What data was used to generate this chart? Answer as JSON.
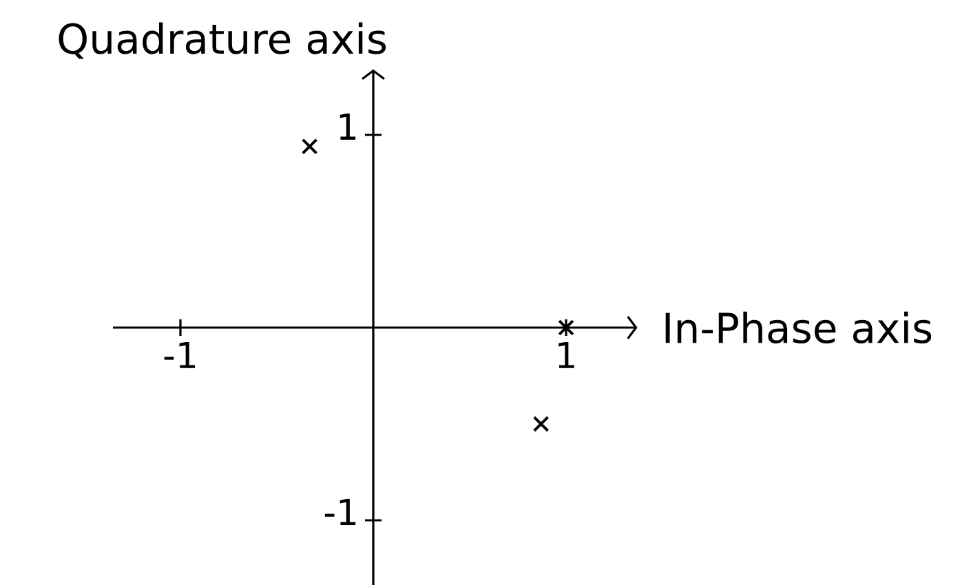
{
  "chart_data": {
    "type": "scatter",
    "xlabel": "In-Phase axis",
    "ylabel": "Quadrature axis",
    "x": [
      -0.33,
      1,
      0.87
    ],
    "values": [
      0.94,
      0,
      -0.5
    ],
    "color": "#000000",
    "marker": "cross",
    "xlim": [
      -1.35,
      1.37
    ],
    "ylim": [
      -1.34,
      1.34
    ],
    "xticks": [
      -1,
      1
    ],
    "yticks": [
      -1,
      1
    ]
  }
}
